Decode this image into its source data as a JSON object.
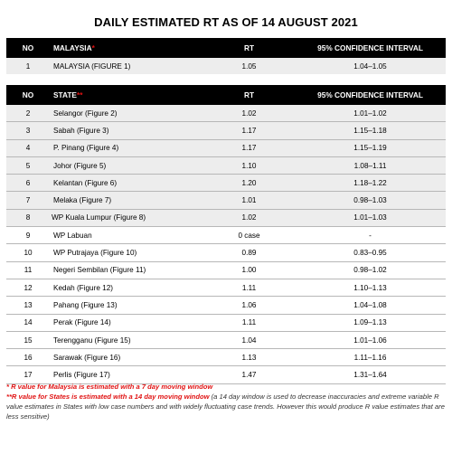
{
  "title": "DAILY ESTIMATED RT AS OF 14 AUGUST 2021",
  "malaysia_table": {
    "headers": {
      "no": "NO",
      "name": "MALAYSIA",
      "marker": "*",
      "rt": "RT",
      "ci": "95% CONFIDENCE INTERVAL"
    },
    "rows": [
      {
        "no": "1",
        "name": "MALAYSIA (FIGURE 1)",
        "rt": "1.05",
        "ci": "1.04–1.05"
      }
    ]
  },
  "states_table": {
    "headers": {
      "no": "NO",
      "name": "STATE",
      "marker": "**",
      "rt": "RT",
      "ci": "95% CONFIDENCE INTERVAL"
    },
    "rows": [
      {
        "no": "2",
        "name": "Selangor (Figure 2)",
        "rt": "1.02",
        "ci": "1.01–1.02"
      },
      {
        "no": "3",
        "name": "Sabah (Figure 3)",
        "rt": "1.17",
        "ci": "1.15–1.18"
      },
      {
        "no": "4",
        "name": "P. Pinang (Figure 4)",
        "rt": "1.17",
        "ci": "1.15–1.19"
      },
      {
        "no": "5",
        "name": "Johor (Figure 5)",
        "rt": "1.10",
        "ci": "1.08–1.11"
      },
      {
        "no": "6",
        "name": "Kelantan (Figure 6)",
        "rt": "1.20",
        "ci": "1.18–1.22"
      },
      {
        "no": "7",
        "name": "Melaka (Figure 7)",
        "rt": "1.01",
        "ci": "0.98–1.03"
      },
      {
        "no": "8",
        "name": "WP Kuala Lumpur (Figure 8)",
        "rt": "1.02",
        "ci": "1.01–1.03"
      },
      {
        "no": "9",
        "name": "WP Labuan",
        "rt": "0 case",
        "ci": "-"
      },
      {
        "no": "10",
        "name": "WP Putrajaya (Figure 10)",
        "rt": "0.89",
        "ci": "0.83–0.95"
      },
      {
        "no": "11",
        "name": "Negeri Sembilan (Figure 11)",
        "rt": "1.00",
        "ci": "0.98–1.02"
      },
      {
        "no": "12",
        "name": "Kedah (Figure 12)",
        "rt": "1.11",
        "ci": "1.10–1.13"
      },
      {
        "no": "13",
        "name": "Pahang (Figure 13)",
        "rt": "1.06",
        "ci": "1.04–1.08"
      },
      {
        "no": "14",
        "name": "Perak (Figure 14)",
        "rt": "1.11",
        "ci": "1.09–1.13"
      },
      {
        "no": "15",
        "name": "Terengganu (Figure 15)",
        "rt": "1.04",
        "ci": "1.01–1.06"
      },
      {
        "no": "16",
        "name": "Sarawak (Figure 16)",
        "rt": "1.13",
        "ci": "1.11–1.16"
      },
      {
        "no": "17",
        "name": "Perlis (Figure 17)",
        "rt": "1.47",
        "ci": "1.31–1.64"
      }
    ]
  },
  "notes": {
    "note1": "*  R value for Malaysia is estimated with a 7 day moving window",
    "note2_red": "**R value for States is estimated with a 14 day moving window",
    "note2_rest": " (a 14 day window is used to decrease inaccuracies and extreme variable R value estimates in States with low case numbers and with widely fluctuating case trends. However this would produce R value estimates that are less sensitive)"
  },
  "colors": {
    "header_bg": "#000000",
    "accent_red": "#e01212",
    "row_shade": "#ededed"
  }
}
